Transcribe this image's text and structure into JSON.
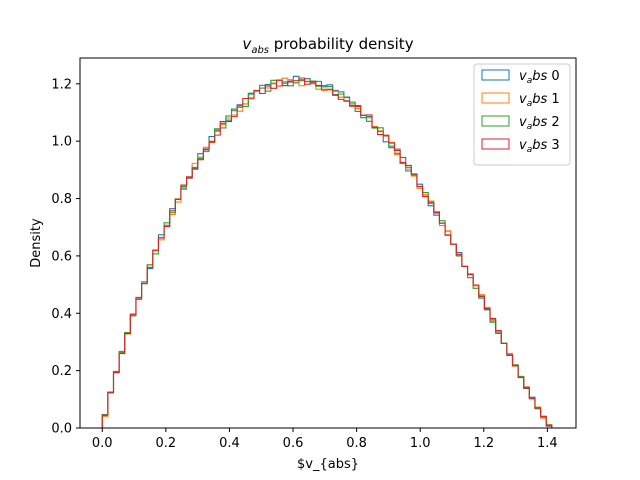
{
  "chart_data": {
    "type": "histogram-step",
    "title": {
      "main": "v",
      "sub": "abs",
      "rest": " probability density"
    },
    "xlabel": "$v_{abs}",
    "ylabel": "Density",
    "xlim": [
      -0.07,
      1.49
    ],
    "ylim": [
      0,
      1.29
    ],
    "xticks": [
      "0.0",
      "0.2",
      "0.4",
      "0.6",
      "0.8",
      "1.0",
      "1.2",
      "1.4"
    ],
    "yticks": [
      "0.0",
      "0.2",
      "0.4",
      "0.6",
      "0.8",
      "1.0",
      "1.2"
    ],
    "grid": false,
    "legend_position": "top-right",
    "bins": {
      "start": 0.0,
      "end": 1.414,
      "count": 80
    },
    "series": [
      {
        "name": "v_abs 0",
        "label_main": "v",
        "label_sub": "a",
        "label_rest": "bs 0",
        "color": "#1f77b4",
        "density_formula": "3*(1 - (v/1.414)^2)*v/1.414 scaled",
        "seed": 1
      },
      {
        "name": "v_abs 1",
        "label_main": "v",
        "label_sub": "a",
        "label_rest": "bs 1",
        "color": "#ff7f0e",
        "seed": 2
      },
      {
        "name": "v_abs 2",
        "label_main": "v",
        "label_sub": "a",
        "label_rest": "bs 2",
        "color": "#2ca02c",
        "seed": 3
      },
      {
        "name": "v_abs 3",
        "label_main": "v",
        "label_sub": "a",
        "label_rest": "bs 3",
        "color": "#d62728",
        "seed": 4
      }
    ],
    "density_peak": 1.21,
    "density_peak_at": 0.63
  }
}
